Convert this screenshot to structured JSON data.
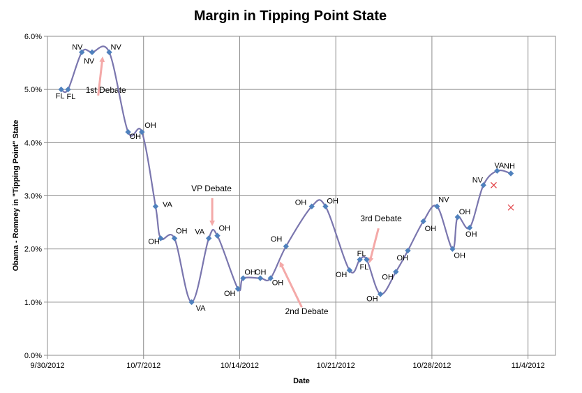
{
  "chart_data": {
    "type": "line",
    "title": "Margin in Tipping Point State",
    "xlabel": "Date",
    "ylabel": "Obama - Romney in \"Tipping Point\" State",
    "x_ticks": [
      "9/30/2012",
      "10/7/2012",
      "10/14/2012",
      "10/21/2012",
      "10/28/2012",
      "11/4/2012"
    ],
    "y_ticks": [
      "0.0%",
      "1.0%",
      "2.0%",
      "3.0%",
      "4.0%",
      "5.0%",
      "6.0%"
    ],
    "xlim": [
      "2012-09-30",
      "2012-11-06"
    ],
    "ylim": [
      0,
      6
    ],
    "grid": true,
    "legend": "none",
    "series": [
      {
        "line_color": "#7a76ae",
        "marker_color": "#4f81bd",
        "points": [
          {
            "date": "2012-10-01T00:00",
            "value": 5.0,
            "label": "FL"
          },
          {
            "date": "2012-10-01T12:00",
            "value": 5.0,
            "label": "FL"
          },
          {
            "date": "2012-10-02T12:00",
            "value": 5.7,
            "label": "NV"
          },
          {
            "date": "2012-10-03T06:00",
            "value": 5.7,
            "label": "NV"
          },
          {
            "date": "2012-10-04T12:00",
            "value": 5.7,
            "label": "NV"
          },
          {
            "date": "2012-10-05T21:00",
            "value": 4.2,
            "label": "OH"
          },
          {
            "date": "2012-10-06T21:00",
            "value": 4.2,
            "label": "OH"
          },
          {
            "date": "2012-10-07T21:00",
            "value": 2.8,
            "label": "VA"
          },
          {
            "date": "2012-10-08T06:00",
            "value": 2.2,
            "label": "OH"
          },
          {
            "date": "2012-10-09T06:00",
            "value": 2.2,
            "label": "OH"
          },
          {
            "date": "2012-10-10T12:00",
            "value": 1.0,
            "label": "VA"
          },
          {
            "date": "2012-10-11T18:00",
            "value": 2.2,
            "label": "VA"
          },
          {
            "date": "2012-10-12T09:00",
            "value": 2.25,
            "label": "OH"
          },
          {
            "date": "2012-10-13T21:00",
            "value": 1.25,
            "label": "OH"
          },
          {
            "date": "2012-10-14T06:00",
            "value": 1.45,
            "label": "OH"
          },
          {
            "date": "2012-10-15T12:00",
            "value": 1.45,
            "label": "OH"
          },
          {
            "date": "2012-10-16T06:00",
            "value": 1.45,
            "label": "OH"
          },
          {
            "date": "2012-10-17T09:00",
            "value": 2.05,
            "label": "OH"
          },
          {
            "date": "2012-10-19T06:00",
            "value": 2.8,
            "label": "OH"
          },
          {
            "date": "2012-10-20T06:00",
            "value": 2.8,
            "label": "OH"
          },
          {
            "date": "2012-10-22T00:00",
            "value": 1.6,
            "label": "OH"
          },
          {
            "date": "2012-10-22T18:00",
            "value": 1.8,
            "label": "FL"
          },
          {
            "date": "2012-10-23T06:00",
            "value": 1.8,
            "label": "FL"
          },
          {
            "date": "2012-10-24T06:00",
            "value": 1.15,
            "label": "OH"
          },
          {
            "date": "2012-10-25T09:00",
            "value": 1.57,
            "label": "OH"
          },
          {
            "date": "2012-10-26T06:00",
            "value": 1.97,
            "label": "OH"
          },
          {
            "date": "2012-10-27T09:00",
            "value": 2.52,
            "label": "OH"
          },
          {
            "date": "2012-10-28T09:00",
            "value": 2.8,
            "label": "NV"
          },
          {
            "date": "2012-10-29T12:00",
            "value": 2.0,
            "label": "OH"
          },
          {
            "date": "2012-10-29T21:00",
            "value": 2.6,
            "label": "OH"
          },
          {
            "date": "2012-10-30T18:00",
            "value": 2.4,
            "label": "OH"
          },
          {
            "date": "2012-10-31T18:00",
            "value": 3.2,
            "label": "NV"
          },
          {
            "date": "2012-11-01T18:00",
            "value": 3.47,
            "label": "VA"
          },
          {
            "date": "2012-11-02T18:00",
            "value": 3.42,
            "label": "NH"
          }
        ]
      },
      {
        "marker": "x",
        "marker_color": "#e0393e",
        "points": [
          {
            "date": "2012-11-01T12:00",
            "value": 3.2
          },
          {
            "date": "2012-11-02T18:00",
            "value": 2.78
          }
        ]
      }
    ],
    "annotations": [
      {
        "text": "1st Debate",
        "date": "2012-10-04T00:00",
        "value": 5.7,
        "arrow_color": "#f4a9a8"
      },
      {
        "text": "VP Debate",
        "date": "2012-10-12T00:00",
        "value": 2.3,
        "arrow_color": "#f4a9a8"
      },
      {
        "text": "2nd Debate",
        "date": "2012-10-17T00:00",
        "value": 1.85,
        "arrow_color": "#f4a9a8"
      },
      {
        "text": "3rd Debate",
        "date": "2012-10-23T12:00",
        "value": 1.6,
        "arrow_color": "#f4a9a8"
      }
    ]
  }
}
